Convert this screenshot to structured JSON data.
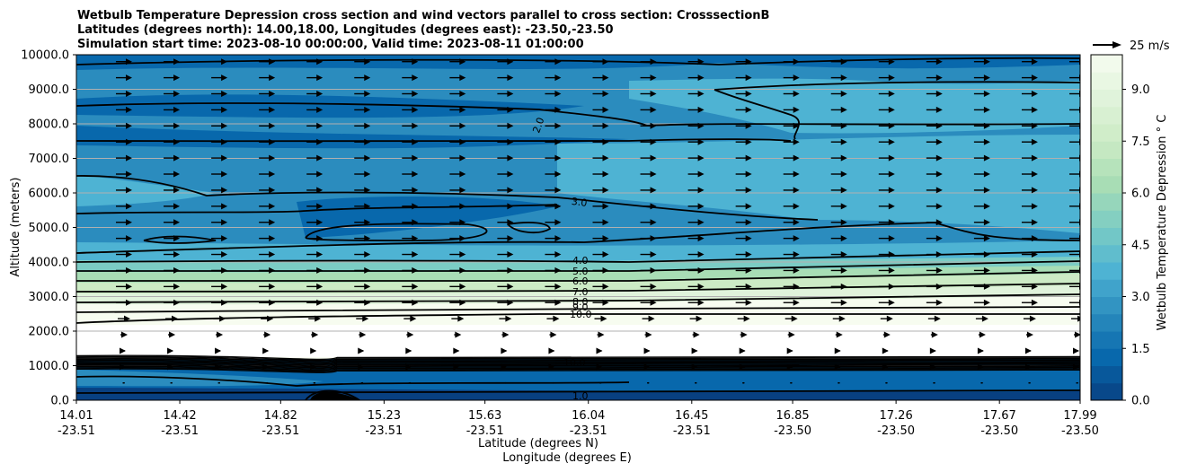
{
  "chart_data": {
    "type": "filled-contour cross section with wind vectors",
    "title_lines": [
      "Wetbulb Temperature Depression cross section and wind vectors parallel to cross section: CrosssectionB",
      "Latitudes (degrees north): 14.00,18.00, Longitudes (degrees east): -23.50,-23.50",
      "Simulation start time: 2023-08-10 00:00:00, Valid time: 2023-08-11 01:00:00"
    ],
    "ylabel": "Altitude (meters)",
    "xlabel_lat": "Latitude (degrees N)",
    "xlabel_lon": "Longitude (degrees E)",
    "ylim": [
      0,
      10000
    ],
    "y_ticks": [
      "0.0",
      "1000.0",
      "2000.0",
      "3000.0",
      "4000.0",
      "5000.0",
      "6000.0",
      "7000.0",
      "8000.0",
      "9000.0",
      "10000.0"
    ],
    "x_ticks": [
      {
        "lat": "14.01",
        "lon": "-23.51"
      },
      {
        "lat": "14.42",
        "lon": "-23.51"
      },
      {
        "lat": "14.82",
        "lon": "-23.51"
      },
      {
        "lat": "15.23",
        "lon": "-23.51"
      },
      {
        "lat": "15.63",
        "lon": "-23.51"
      },
      {
        "lat": "16.04",
        "lon": "-23.51"
      },
      {
        "lat": "16.45",
        "lon": "-23.51"
      },
      {
        "lat": "16.85",
        "lon": "-23.50"
      },
      {
        "lat": "17.26",
        "lon": "-23.50"
      },
      {
        "lat": "17.67",
        "lon": "-23.50"
      },
      {
        "lat": "17.99",
        "lon": "-23.50"
      }
    ],
    "grid": "horizontal gridlines on",
    "colorbar": {
      "label": "Wetbulb Temperature Depression $^\\circ$C",
      "label_display": "Wetbulb Temperature Depression ° C",
      "ticks": [
        "0.0",
        "1.5",
        "3.0",
        "4.5",
        "6.0",
        "7.5",
        "9.0"
      ],
      "range": [
        0,
        10
      ],
      "colors": [
        "#084081",
        "#0868ac",
        "#2b8cbe",
        "#4eb3d3",
        "#7bccc4",
        "#a8ddb5",
        "#ccebc5",
        "#e0f3db",
        "#f7fcf0"
      ]
    },
    "quiver_key": "25 m/s",
    "contour_labels": [
      "1.0",
      "2.0",
      "3.0",
      "4.0",
      "5.0",
      "6.0",
      "7.0",
      "8.0",
      "9.0",
      "10.0",
      "10.0"
    ],
    "wind_direction": "parallel to cross section, toward north; stronger aloft (~12-15 m/s), weak (~2-5 m/s) below 2000 m"
  }
}
